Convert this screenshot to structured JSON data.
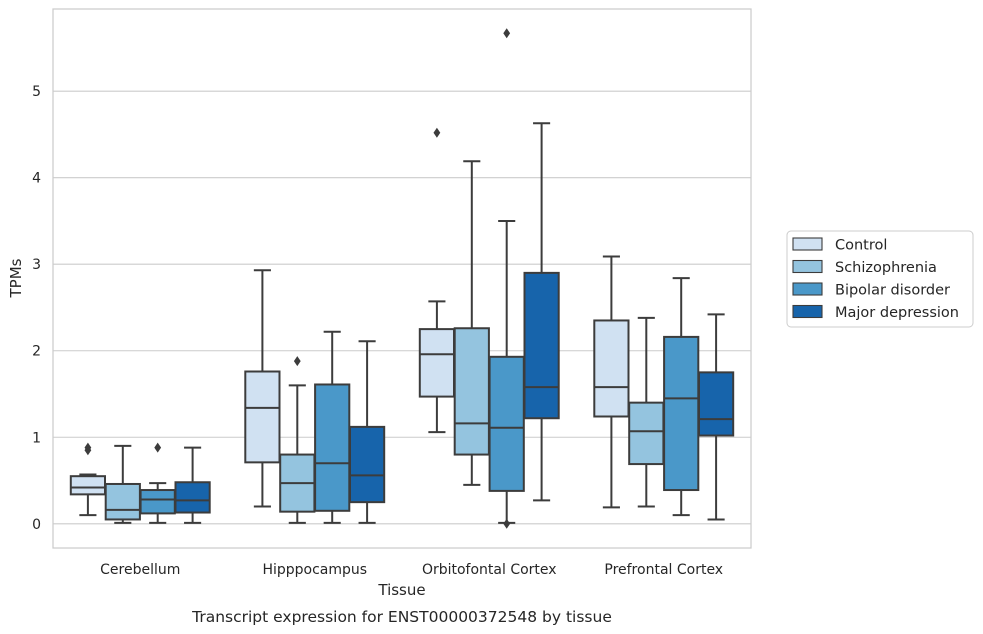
{
  "caption": "Transcript expression for ENST00000372548 by tissue",
  "chart_data": {
    "type": "box",
    "xlabel": "Tissue",
    "ylabel": "TPMs",
    "ylim": [
      -0.28,
      5.95
    ],
    "yticks": [
      0,
      1,
      2,
      3,
      4,
      5
    ],
    "grid": "horizontal",
    "legend_position": "right",
    "categories": [
      "Cerebellum",
      "Hipppocampus",
      "Orbitofontal Cortex",
      "Prefrontal Cortex"
    ],
    "series": [
      {
        "name": "Control",
        "color": "#d0e1f2",
        "boxes": [
          {
            "whislo": 0.1,
            "q1": 0.34,
            "med": 0.42,
            "q3": 0.55,
            "whishi": 0.57,
            "fliers": [
              0.85,
              0.88
            ]
          },
          {
            "whislo": 0.2,
            "q1": 0.71,
            "med": 1.34,
            "q3": 1.76,
            "whishi": 2.93,
            "fliers": []
          },
          {
            "whislo": 1.06,
            "q1": 1.47,
            "med": 1.96,
            "q3": 2.25,
            "whishi": 2.57,
            "fliers": [
              4.52
            ]
          },
          {
            "whislo": 0.19,
            "q1": 1.24,
            "med": 1.58,
            "q3": 2.35,
            "whishi": 3.09,
            "fliers": []
          }
        ]
      },
      {
        "name": "Schizophrenia",
        "color": "#94c4df",
        "boxes": [
          {
            "whislo": 0.01,
            "q1": 0.05,
            "med": 0.16,
            "q3": 0.46,
            "whishi": 0.9,
            "fliers": []
          },
          {
            "whislo": 0.01,
            "q1": 0.14,
            "med": 0.47,
            "q3": 0.8,
            "whishi": 1.6,
            "fliers": [
              1.88
            ]
          },
          {
            "whislo": 0.45,
            "q1": 0.8,
            "med": 1.16,
            "q3": 2.26,
            "whishi": 4.19,
            "fliers": []
          },
          {
            "whislo": 0.2,
            "q1": 0.69,
            "med": 1.07,
            "q3": 1.4,
            "whishi": 2.38,
            "fliers": []
          }
        ]
      },
      {
        "name": "Bipolar disorder",
        "color": "#4a98c9",
        "boxes": [
          {
            "whislo": 0.01,
            "q1": 0.12,
            "med": 0.28,
            "q3": 0.39,
            "whishi": 0.47,
            "fliers": [
              0.88
            ]
          },
          {
            "whislo": 0.01,
            "q1": 0.15,
            "med": 0.7,
            "q3": 1.61,
            "whishi": 2.22,
            "fliers": []
          },
          {
            "whislo": 0.01,
            "q1": 0.38,
            "med": 1.11,
            "q3": 1.93,
            "whishi": 3.5,
            "fliers": [
              5.67,
              0.0
            ]
          },
          {
            "whislo": 0.1,
            "q1": 0.39,
            "med": 1.45,
            "q3": 2.16,
            "whishi": 2.84,
            "fliers": []
          }
        ]
      },
      {
        "name": "Major depression",
        "color": "#1764ab",
        "boxes": [
          {
            "whislo": 0.01,
            "q1": 0.13,
            "med": 0.27,
            "q3": 0.48,
            "whishi": 0.88,
            "fliers": []
          },
          {
            "whislo": 0.01,
            "q1": 0.25,
            "med": 0.56,
            "q3": 1.12,
            "whishi": 2.11,
            "fliers": []
          },
          {
            "whislo": 0.27,
            "q1": 1.22,
            "med": 1.58,
            "q3": 2.9,
            "whishi": 4.63,
            "fliers": []
          },
          {
            "whislo": 0.05,
            "q1": 1.02,
            "med": 1.21,
            "q3": 1.75,
            "whishi": 2.42,
            "fliers": []
          }
        ]
      }
    ]
  }
}
